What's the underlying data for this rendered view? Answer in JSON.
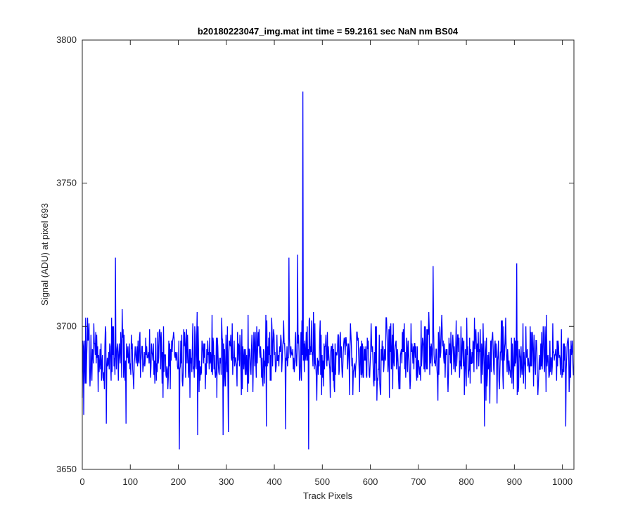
{
  "chart_data": {
    "type": "line",
    "title": "b20180223047_img.mat int time = 59.2161 sec  NaN nm BS04",
    "xlabel": "Track Pixels",
    "ylabel": "Signal (ADU) at pixel 693",
    "xlim": [
      0,
      1024
    ],
    "ylim": [
      3650,
      3800
    ],
    "xticks": [
      0,
      100,
      200,
      300,
      400,
      500,
      600,
      700,
      800,
      900,
      1000
    ],
    "yticks": [
      3650,
      3700,
      3750,
      3800
    ],
    "grid": false,
    "line_color": "#0000ff",
    "noise_model": {
      "n_points": 1024,
      "baseline": 3690,
      "noise_range": [
        3672,
        3710
      ],
      "seed": 47
    },
    "notable_points": [
      {
        "x": 0,
        "y": 3675
      },
      {
        "x": 3,
        "y": 3669
      },
      {
        "x": 69,
        "y": 3724
      },
      {
        "x": 50,
        "y": 3666
      },
      {
        "x": 91,
        "y": 3666
      },
      {
        "x": 202,
        "y": 3657
      },
      {
        "x": 240,
        "y": 3662
      },
      {
        "x": 293,
        "y": 3662
      },
      {
        "x": 304,
        "y": 3663
      },
      {
        "x": 383,
        "y": 3665
      },
      {
        "x": 423,
        "y": 3664
      },
      {
        "x": 430,
        "y": 3724
      },
      {
        "x": 448,
        "y": 3725
      },
      {
        "x": 459,
        "y": 3782
      },
      {
        "x": 462,
        "y": 3684
      },
      {
        "x": 471,
        "y": 3657
      },
      {
        "x": 730,
        "y": 3721
      },
      {
        "x": 837,
        "y": 3665
      },
      {
        "x": 904,
        "y": 3722
      },
      {
        "x": 1006,
        "y": 3665
      },
      {
        "x": 1024,
        "y": 3683
      }
    ]
  }
}
